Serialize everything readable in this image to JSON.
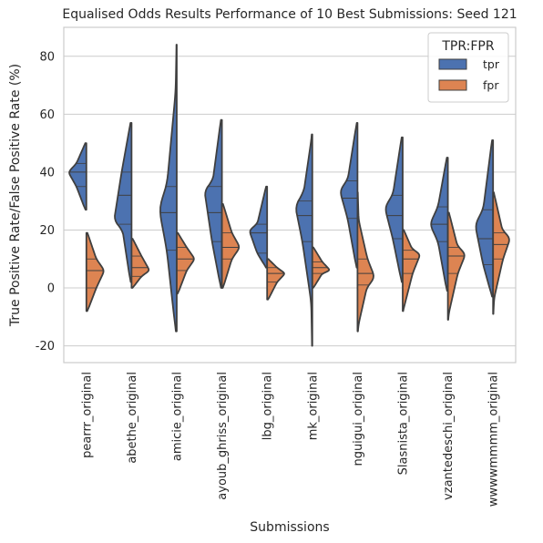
{
  "chart_data": {
    "type": "violin",
    "title": "Equalised Odds Results Performance of 10 Best Submissions: Seed 121",
    "xlabel": "Submissions",
    "ylabel": "True Positive Rate/False Positive Rate (%)",
    "ylim": [
      -25.8,
      90
    ],
    "yticks": [
      -20,
      0,
      20,
      40,
      60,
      80
    ],
    "grid": true,
    "categories": [
      "pearrr_original",
      "abethe_original",
      "amicie_original",
      "ayoub_ghriss_original",
      "lbg_original",
      "mk_original",
      "nguigui_original",
      "Slasnista_original",
      "vzantedeschi_original",
      "wwwwmmmm_original"
    ],
    "legend": {
      "title": "TPR:FPR",
      "position": "top-right",
      "entries": [
        "tpr",
        "fpr"
      ]
    },
    "series": [
      {
        "name": "tpr",
        "color": "#4c72b0",
        "values": [
          [
            27,
            35,
            40,
            43,
            50
          ],
          [
            2,
            22,
            32,
            40,
            57
          ],
          [
            -15,
            13,
            26,
            35,
            84
          ],
          [
            0,
            16,
            26,
            35,
            58
          ],
          [
            7,
            12,
            19,
            22,
            35
          ],
          [
            -20,
            16,
            25,
            30,
            53
          ],
          [
            7,
            24,
            31,
            37,
            57
          ],
          [
            2,
            17,
            25,
            32,
            52
          ],
          [
            -1,
            16,
            22,
            28,
            45
          ],
          [
            -3,
            8,
            17,
            27,
            51
          ]
        ],
        "density_peaks": [
          40,
          20,
          28,
          37,
          20,
          35,
          34,
          28,
          22,
          22
        ]
      },
      {
        "name": "fpr",
        "color": "#dd8452",
        "values": [
          [
            -8,
            0,
            6,
            10,
            19
          ],
          [
            0,
            4,
            7,
            11,
            17
          ],
          [
            -2,
            6,
            10,
            14,
            19
          ],
          [
            0,
            10,
            14,
            19,
            29
          ],
          [
            -4,
            2,
            5,
            7,
            10
          ],
          [
            0,
            5,
            7,
            9,
            14
          ],
          [
            -15,
            1,
            5,
            10,
            33
          ],
          [
            -8,
            5,
            10,
            13,
            20
          ],
          [
            -11,
            5,
            11,
            14,
            26
          ],
          [
            -9,
            10,
            15,
            19,
            33
          ]
        ],
        "density_peaks": [
          6,
          6,
          10,
          14,
          5,
          6,
          3,
          12,
          12,
          18
        ]
      }
    ]
  }
}
